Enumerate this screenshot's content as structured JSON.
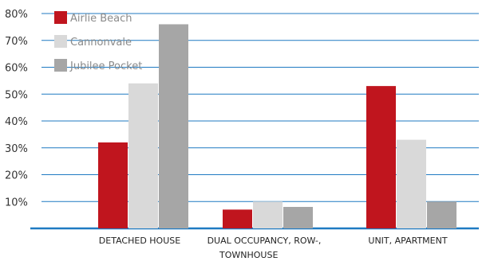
{
  "chart_data": {
    "type": "bar",
    "title": "",
    "xlabel": "",
    "ylabel": "",
    "ylim": [
      0,
      80
    ],
    "yticks": [
      "10%",
      "20%",
      "30%",
      "40%",
      "50%",
      "60%",
      "70%",
      "80%"
    ],
    "grid": true,
    "legend_position": "top-left",
    "categories": [
      {
        "line1": "DETACHED HOUSE",
        "line2": ""
      },
      {
        "line1": "DUAL OCCUPANCY, ROW-,",
        "line2": "TOWNHOUSE"
      },
      {
        "line1": "UNIT, APARTMENT",
        "line2": ""
      }
    ],
    "series": [
      {
        "name": "Airlie Beach",
        "color": "#c0151e",
        "values": [
          32,
          7,
          53
        ]
      },
      {
        "name": "Cannonvale",
        "color": "#d9d9d9",
        "values": [
          54,
          10,
          33
        ]
      },
      {
        "name": "Jubilee Pocket",
        "color": "#a6a6a6",
        "values": [
          76,
          8,
          10
        ]
      }
    ],
    "colors": {
      "gridline": "#1f7ac2",
      "baseline": "#1f7ac2"
    }
  }
}
